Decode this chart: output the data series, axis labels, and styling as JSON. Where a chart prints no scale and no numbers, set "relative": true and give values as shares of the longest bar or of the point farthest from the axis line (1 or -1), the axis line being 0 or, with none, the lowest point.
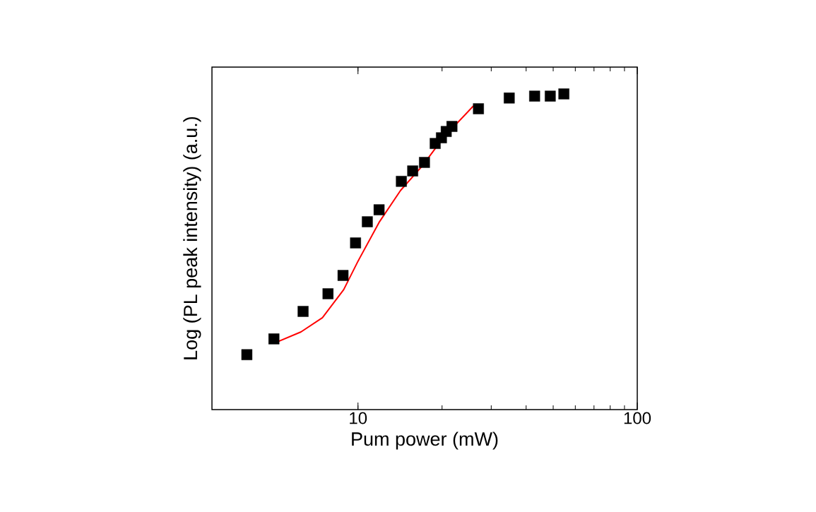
{
  "chart_data": {
    "type": "scatter",
    "xlabel": "Pum power (mW)",
    "ylabel": "Log (PL peak intensity) (a.u.)",
    "log": "x",
    "relative": true,
    "xlim": [
      3,
      100
    ],
    "xticks": [
      10,
      100
    ],
    "tick_labels": "x",
    "grid": false,
    "series": [
      {
        "marker": "square",
        "color": "#000000",
        "x": [
          4,
          5,
          6.36,
          7.81,
          8.84,
          9.8,
          10.8,
          11.9,
          14.3,
          15.7,
          17.3,
          18.9,
          19.9,
          20.7,
          21.7,
          27.0,
          34.8,
          42.9,
          48.8,
          54.6
        ],
        "values": [
          0.174,
          0.224,
          0.311,
          0.367,
          0.425,
          0.528,
          0.595,
          0.633,
          0.723,
          0.756,
          0.783,
          0.843,
          0.861,
          0.881,
          0.897,
          0.953,
          0.987,
          0.993,
          0.993,
          1
        ]
      },
      {
        "type": "line",
        "marker": "none",
        "line_style": "solid",
        "color": "#ff0000",
        "x": [
          5,
          6.25,
          7.46,
          8.89,
          10,
          11.9,
          14.2,
          17.0,
          20.2,
          25.9
        ],
        "values": [
          0.21,
          0.246,
          0.291,
          0.38,
          0.47,
          0.593,
          0.694,
          0.772,
          0.861,
          0.962
        ]
      }
    ]
  }
}
